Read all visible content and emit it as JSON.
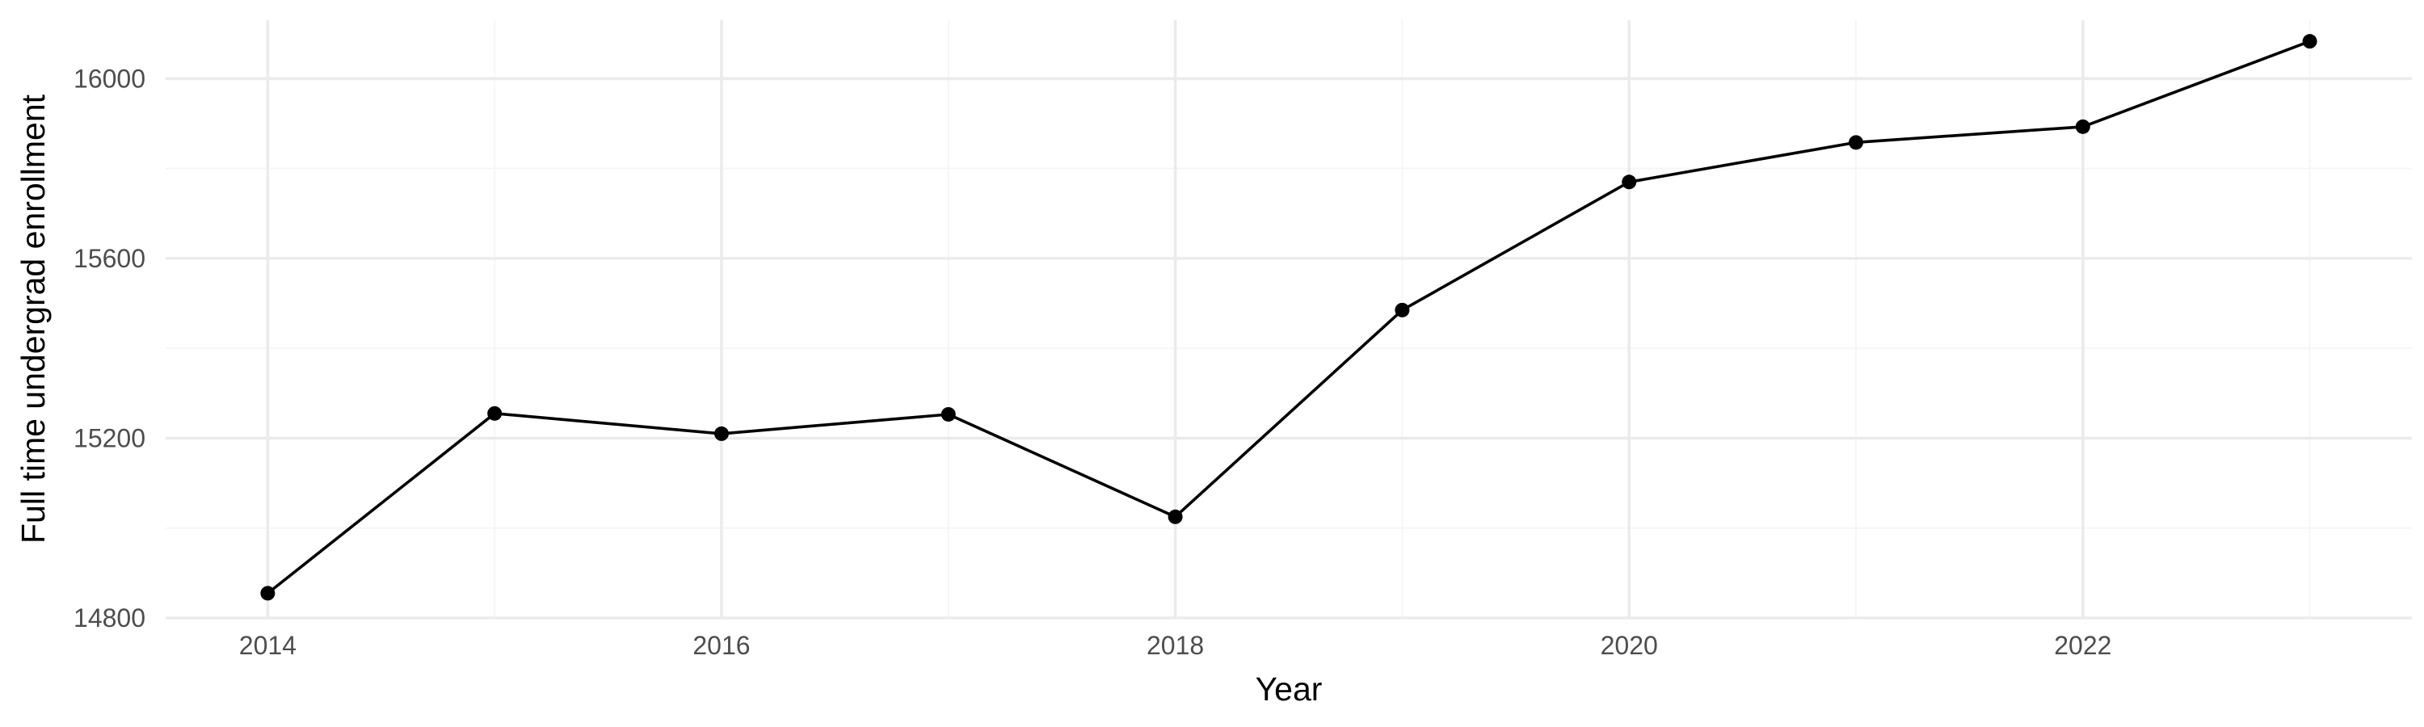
{
  "chart_data": {
    "type": "line",
    "title": "",
    "xlabel": "Year",
    "ylabel": "Full time undergrad enrollment",
    "x": [
      2014,
      2015,
      2016,
      2017,
      2018,
      2019,
      2020,
      2021,
      2022,
      2023
    ],
    "series": [
      {
        "values": [
          14855,
          15255,
          15210,
          15253,
          15025,
          15485,
          15770,
          15858,
          15893,
          16083
        ]
      }
    ],
    "xlim": [
      2013.55,
      2023.45
    ],
    "ylim": [
      14800,
      16130
    ],
    "x_ticks": [
      2014,
      2016,
      2018,
      2020,
      2022
    ],
    "y_ticks": [
      14800,
      15200,
      15600,
      16000
    ],
    "grid": true,
    "colors": {
      "line": "#000000",
      "point": "#000000",
      "grid": "#ebebeb",
      "tick_text": "#4d4d4d",
      "background": "#ffffff"
    }
  }
}
